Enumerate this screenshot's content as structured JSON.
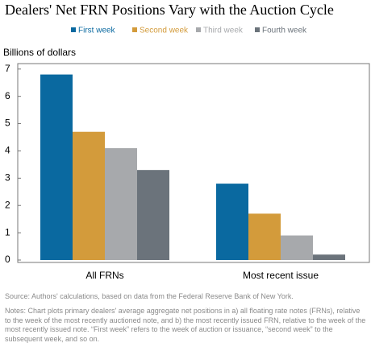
{
  "chart_data": {
    "type": "bar",
    "title": "Dealers' Net FRN Positions Vary with the Auction Cycle",
    "y_label": "Billions of dollars",
    "categories": [
      "All FRNs",
      "Most recent issue"
    ],
    "series": [
      {
        "name": "First week",
        "color": "#0a69a0",
        "values": [
          6.8,
          2.8
        ]
      },
      {
        "name": "Second week",
        "color": "#d39b3b",
        "values": [
          4.7,
          1.7
        ]
      },
      {
        "name": "Third week",
        "color": "#a7a9ac",
        "values": [
          4.1,
          0.9
        ]
      },
      {
        "name": "Fourth week",
        "color": "#6b737b",
        "values": [
          3.3,
          0.2
        ]
      }
    ],
    "ylim": [
      0,
      7.2
    ],
    "yticks": [
      0,
      1,
      2,
      3,
      4,
      5,
      6,
      7
    ],
    "legend": "top",
    "source": "Source: Authors' calculations, based on data from the Federal Reserve Bank of New York.",
    "notes": "Notes: Chart plots primary dealers' average aggregate net positions in a) all floating rate notes (FRNs), relative to the week of the most recently auctioned note, and b) the most recently issued FRN, relative to the week of the most recently issued note. “First week” refers to the week of auction or issuance, “second week” to the subsequent week, and so on."
  }
}
